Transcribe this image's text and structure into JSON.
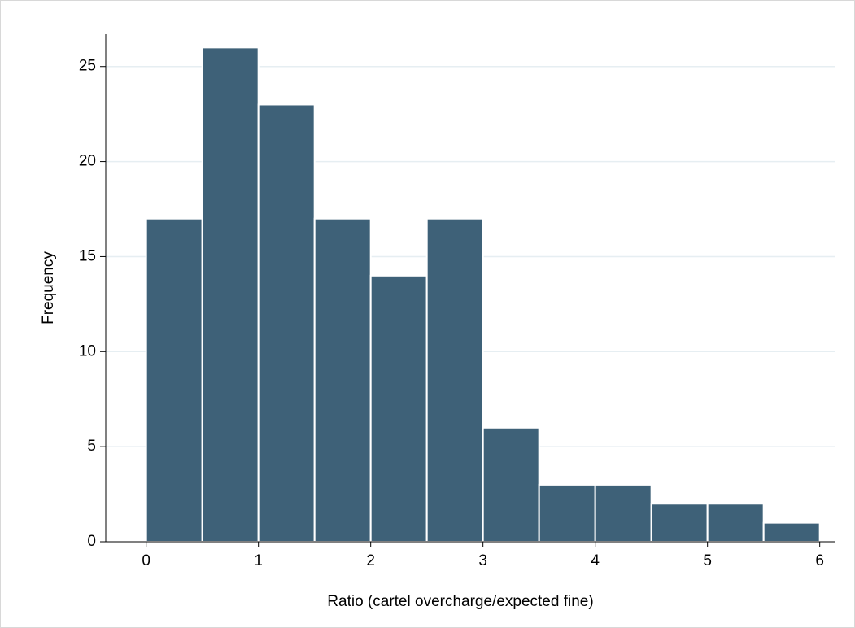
{
  "chart_data": {
    "type": "histogram",
    "x_label": "Ratio (cartel overcharge/expected fine)",
    "y_label": "Frequency",
    "bins": [
      0,
      0.5,
      1,
      1.5,
      2,
      2.5,
      3,
      3.5,
      4,
      4.5,
      5,
      5.5,
      6
    ],
    "values": [
      17,
      26,
      23,
      17,
      14,
      17,
      6,
      3,
      3,
      2,
      2,
      1
    ],
    "color": "#3e6178",
    "xlim": [
      -0.36,
      6.14
    ],
    "xticks": [
      0,
      1,
      2,
      3,
      4,
      5,
      6
    ],
    "ylim": [
      0,
      26.7
    ],
    "yticks": [
      0,
      5,
      10,
      15,
      20,
      25
    ],
    "grid": true
  }
}
